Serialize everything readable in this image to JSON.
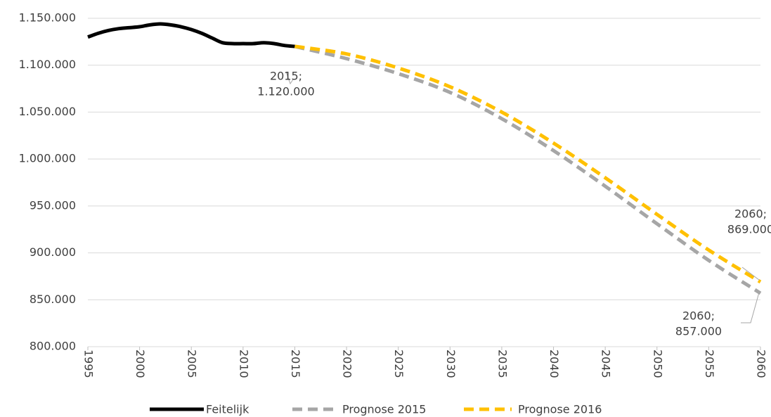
{
  "chart_data": {
    "type": "line",
    "series": [
      {
        "name": "Feitelijk",
        "color": "#000000",
        "dashed": false,
        "x": [
          1995,
          1996,
          1997,
          1998,
          1999,
          2000,
          2001,
          2002,
          2003,
          2004,
          2005,
          2006,
          2007,
          2008,
          2009,
          2010,
          2011,
          2012,
          2013,
          2014,
          2015
        ],
        "values": [
          1130000,
          1134000,
          1137000,
          1139000,
          1140000,
          1141000,
          1143000,
          1144000,
          1143000,
          1141000,
          1138000,
          1134000,
          1129000,
          1124000,
          1123000,
          1123000,
          1123000,
          1124000,
          1123000,
          1121000,
          1120000
        ]
      },
      {
        "name": "Prognose 2015",
        "color": "#a6a6a6",
        "dashed": true,
        "x": [
          2015,
          2020,
          2025,
          2030,
          2035,
          2040,
          2045,
          2050,
          2055,
          2060
        ],
        "values": [
          1120000,
          1107000,
          1091000,
          1071000,
          1043000,
          1009000,
          971000,
          931000,
          892000,
          857000
        ]
      },
      {
        "name": "Prognose 2016",
        "color": "#ffc000",
        "dashed": true,
        "x": [
          2015,
          2020,
          2025,
          2030,
          2035,
          2040,
          2045,
          2050,
          2055,
          2060
        ],
        "values": [
          1120000,
          1112000,
          1097000,
          1077000,
          1050000,
          1017000,
          980000,
          941000,
          903000,
          869000
        ]
      }
    ],
    "xlim": [
      1995,
      2060
    ],
    "xticks": [
      1995,
      2000,
      2005,
      2010,
      2015,
      2020,
      2025,
      2030,
      2035,
      2040,
      2045,
      2050,
      2055,
      2060
    ],
    "ylim": [
      800000,
      1150000
    ],
    "yticks": [
      {
        "value": 800000,
        "label": "800.000"
      },
      {
        "value": 850000,
        "label": "850.000"
      },
      {
        "value": 900000,
        "label": "900.000"
      },
      {
        "value": 950000,
        "label": "950.000"
      },
      {
        "value": 1000000,
        "label": "1.000.000"
      },
      {
        "value": 1050000,
        "label": "1.050.000"
      },
      {
        "value": 1100000,
        "label": "1.100.000"
      },
      {
        "value": 1150000,
        "label": "1.150.000"
      }
    ],
    "grid": true,
    "legend": "bottom",
    "annotations": [
      {
        "lines": [
          "2015;",
          "1.120.000"
        ]
      },
      {
        "lines": [
          "2060;",
          "869.000"
        ]
      },
      {
        "lines": [
          "2060;",
          "857.000"
        ]
      }
    ]
  }
}
